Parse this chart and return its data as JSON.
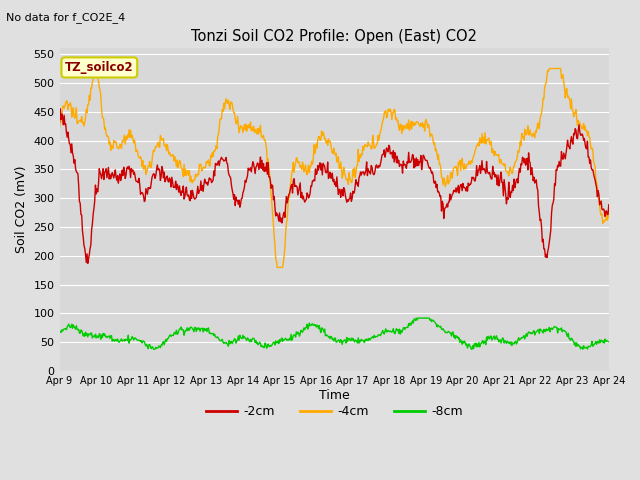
{
  "title": "Tonzi Soil CO2 Profile: Open (East) CO2",
  "subtitle": "No data for f_CO2E_4",
  "ylabel": "Soil CO2 (mV)",
  "xlabel": "Time",
  "legend_label": "TZ_soilco2",
  "ylim": [
    0,
    560
  ],
  "yticks": [
    0,
    50,
    100,
    150,
    200,
    250,
    300,
    350,
    400,
    450,
    500,
    550
  ],
  "series_labels": [
    "-2cm",
    "-4cm",
    "-8cm"
  ],
  "series_colors": [
    "#cc0000",
    "#ffaa00",
    "#00cc00"
  ],
  "fig_facecolor": "#e0e0e0",
  "plot_facecolor": "#d8d8d8",
  "n_points": 720,
  "xticklabels": [
    "Apr 9",
    "Apr 10",
    "Apr 11",
    "Apr 12",
    "Apr 13",
    "Apr 14",
    "Apr 15",
    "Apr 16",
    "Apr 17",
    "Apr 18",
    "Apr 19",
    "Apr 20",
    "Apr 21",
    "Apr 22",
    "Apr 23",
    "Apr 24"
  ],
  "legend_box_facecolor": "#ffffcc",
  "legend_box_edgecolor": "#cccc00",
  "grid_color": "#ffffff"
}
